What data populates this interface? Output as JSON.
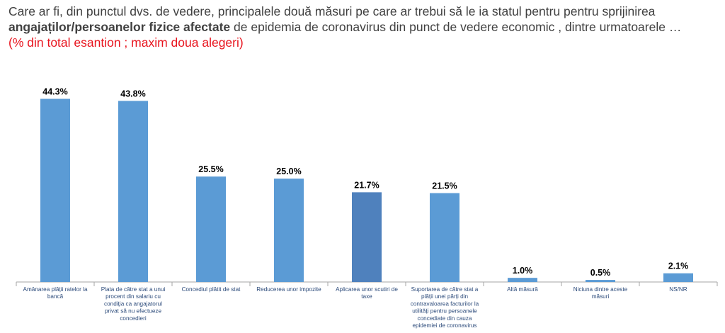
{
  "title": {
    "line1": "Care ar fi, din punctul dvs. de vedere, principalele două măsuri pe care ar trebui să le ia statul pentru pentru sprijinirea",
    "line2_bold": "angajaților/persoanelor fizice afectate",
    "line2_rest": " de epidemia de coronavirus din punct de vedere economic , dintre urmatoarele …",
    "subtitle": "(% din total esantion ; maxim doua alegeri)"
  },
  "colors": {
    "bar": "#5b9bd5",
    "bar_highlight": "#4f81bd",
    "axis": "#a6a6a6",
    "subtitle": "#e8141e",
    "category_text": "#2b4a7a"
  },
  "chart_data": {
    "type": "bar",
    "categories": [
      [
        "Amânarea plății ratelor la",
        "bancă"
      ],
      [
        "Plata de către stat a unui",
        "procent din salariu cu",
        "condiția ca angajatorul",
        "privat să nu efectueze",
        "concedieri"
      ],
      [
        "Concediul plătit de stat"
      ],
      [
        "Reducerea unor impozite"
      ],
      [
        "Aplicarea unor scutiri de",
        "taxe"
      ],
      [
        "Suportarea de către stat a",
        "plății unei părți din",
        "contravaloarea facturilor la",
        "utilități pentru persoanele",
        "concediate din cauza",
        "epidemiei de coronavirus"
      ],
      [
        "Altă măsură"
      ],
      [
        "Niciuna dintre aceste",
        "măsuri"
      ],
      [
        "NS/NR"
      ]
    ],
    "values": [
      44.3,
      43.8,
      25.5,
      25.0,
      21.7,
      21.5,
      1.0,
      0.5,
      2.1
    ],
    "value_labels": [
      "44.3%",
      "43.8%",
      "25.5%",
      "25.0%",
      "21.7%",
      "21.5%",
      "1.0%",
      "0.5%",
      "2.1%"
    ],
    "highlight_index": 4,
    "ylim": [
      0,
      46
    ],
    "grid": false,
    "legend": "none"
  }
}
